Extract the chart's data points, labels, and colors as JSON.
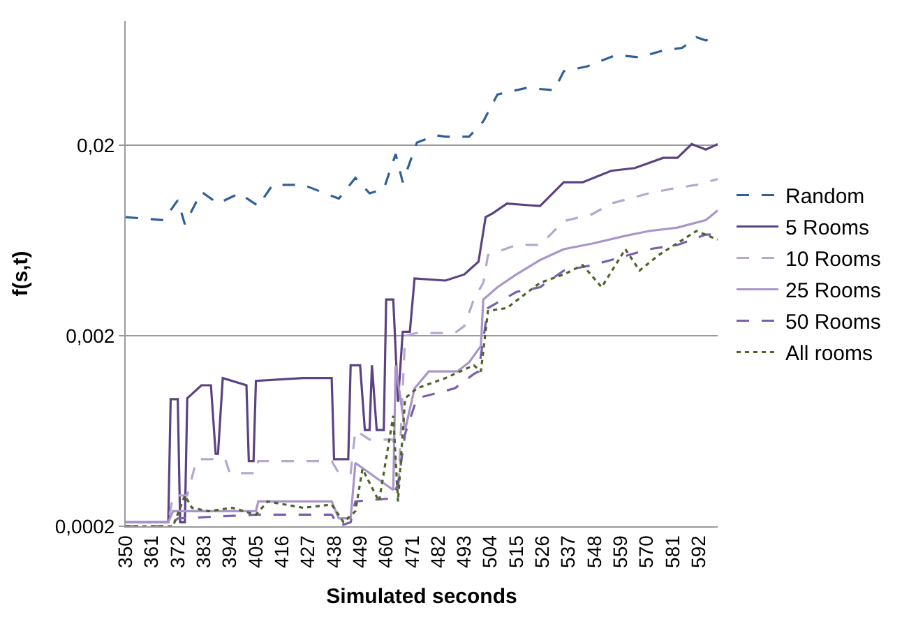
{
  "chart_data": {
    "type": "line",
    "xlabel": "Simulated seconds",
    "ylabel": "f(s,t)",
    "log": true,
    "grid": "y",
    "legend": "right",
    "marker": "none",
    "xlim": [
      350,
      600
    ],
    "xticks": [
      350,
      361,
      372,
      383,
      394,
      405,
      416,
      427,
      438,
      449,
      460,
      471,
      482,
      493,
      504,
      515,
      526,
      537,
      548,
      559,
      570,
      581,
      592
    ],
    "ylim": [
      0.0002,
      0.09
    ],
    "yticks": [
      {
        "value": 0.0002,
        "label": "0,0002"
      },
      {
        "value": 0.002,
        "label": "0,002"
      },
      {
        "value": 0.02,
        "label": "0,02"
      }
    ],
    "series": [
      {
        "name": "Random",
        "color": "#2f5f98",
        "line_style": "dashed",
        "x": [
          350,
          366,
          372,
          375,
          382,
          389,
          398,
          406,
          412,
          425,
          440,
          447,
          453,
          459,
          464,
          467,
          473,
          481,
          485,
          495,
          501,
          507,
          519,
          531,
          535,
          545,
          557,
          567,
          577,
          585,
          591,
          595,
          600
        ],
        "values": [
          0.0084,
          0.0081,
          0.0103,
          0.0077,
          0.0114,
          0.0099,
          0.0112,
          0.0096,
          0.0124,
          0.0124,
          0.0105,
          0.0135,
          0.0112,
          0.0118,
          0.018,
          0.0128,
          0.0207,
          0.0226,
          0.0222,
          0.0222,
          0.0267,
          0.037,
          0.04,
          0.039,
          0.049,
          0.052,
          0.0596,
          0.058,
          0.063,
          0.065,
          0.074,
          0.071,
          0.077
        ]
      },
      {
        "name": "5 Rooms",
        "color": "#5b4282",
        "line_style": "solid",
        "x": [
          350,
          368,
          369,
          372,
          373,
          375,
          376,
          382,
          386,
          388,
          389,
          391,
          401,
          402,
          404,
          405,
          425,
          437,
          438,
          444,
          445,
          449,
          451,
          453,
          454,
          456,
          459,
          460,
          463,
          465,
          467,
          470,
          472,
          485,
          493,
          499,
          502,
          505,
          511,
          525,
          535,
          543,
          555,
          565,
          577,
          583,
          589,
          595,
          600
        ],
        "values": [
          0.00021,
          0.00021,
          0.00093,
          0.00093,
          0.00021,
          0.00021,
          0.00094,
          0.0011,
          0.0011,
          0.00048,
          0.00048,
          0.0012,
          0.0011,
          0.00044,
          0.00044,
          0.00116,
          0.0012,
          0.0012,
          0.00045,
          0.00045,
          0.0014,
          0.0014,
          0.00064,
          0.00064,
          0.0014,
          0.00064,
          0.00064,
          0.0031,
          0.0031,
          0.0009,
          0.0021,
          0.0021,
          0.004,
          0.0039,
          0.0042,
          0.0049,
          0.0084,
          0.0088,
          0.0099,
          0.0096,
          0.0128,
          0.0128,
          0.0147,
          0.0152,
          0.0172,
          0.0172,
          0.0203,
          0.019,
          0.0203
        ]
      },
      {
        "name": "10 Rooms",
        "color": "#b6a6d0",
        "line_style": "dashed",
        "x": [
          350,
          368,
          370,
          376,
          380,
          392,
          394,
          405,
          406,
          437,
          440,
          445,
          447,
          453,
          463,
          465,
          468,
          473,
          489,
          493,
          497,
          501,
          503,
          515,
          525,
          535,
          547,
          555,
          571,
          580,
          591,
          600
        ],
        "values": [
          0.00021,
          0.00021,
          0.00029,
          0.00029,
          0.00045,
          0.00045,
          0.00038,
          0.00038,
          0.00044,
          0.00044,
          0.00038,
          0.00038,
          0.00064,
          0.00057,
          0.00057,
          0.00029,
          0.002,
          0.00207,
          0.00207,
          0.00225,
          0.0031,
          0.0038,
          0.0053,
          0.006,
          0.006,
          0.008,
          0.0087,
          0.0099,
          0.0112,
          0.0118,
          0.0124,
          0.0133
        ]
      },
      {
        "name": "25 Rooms",
        "color": "#a995c9",
        "line_style": "solid",
        "x": [
          350,
          368,
          370,
          405,
          406,
          437,
          440,
          445,
          447,
          463,
          464,
          468,
          472,
          478,
          490,
          495,
          500,
          501,
          507,
          515,
          525,
          535,
          547,
          561,
          571,
          583,
          595,
          600
        ],
        "values": [
          0.00021,
          0.00021,
          0.00024,
          0.00024,
          0.00027,
          0.00027,
          0.00022,
          0.00022,
          0.00043,
          0.00031,
          0.0014,
          0.00064,
          0.00106,
          0.0013,
          0.0013,
          0.00145,
          0.00177,
          0.0031,
          0.0036,
          0.0042,
          0.005,
          0.0057,
          0.0061,
          0.0067,
          0.0071,
          0.0074,
          0.0081,
          0.0091
        ]
      },
      {
        "name": "50 Rooms",
        "color": "#7a5fae",
        "line_style": "dashed",
        "x": [
          350,
          368,
          372,
          405,
          437,
          440,
          445,
          447,
          462,
          465,
          468,
          473,
          489,
          497,
          499,
          503,
          515,
          525,
          535,
          547,
          555,
          571,
          583,
          595,
          600
        ],
        "values": [
          0.0002,
          0.0002,
          0.00022,
          0.00023,
          0.00023,
          0.0002,
          0.00021,
          0.00027,
          0.00028,
          0.00033,
          0.00061,
          0.00094,
          0.00106,
          0.00126,
          0.0013,
          0.0028,
          0.0034,
          0.0036,
          0.0044,
          0.0047,
          0.005,
          0.0057,
          0.006,
          0.0068,
          0.0068
        ]
      },
      {
        "name": "All rooms",
        "color": "#4f6228",
        "line_style": "dotted",
        "x": [
          350,
          370,
          375,
          378,
          385,
          395,
          405,
          410,
          425,
          437,
          442,
          447,
          450,
          457,
          463,
          465,
          468,
          473,
          485,
          497,
          500,
          503,
          511,
          525,
          535,
          543,
          551,
          561,
          567,
          575,
          591,
          600
        ],
        "values": [
          0.0002,
          0.0002,
          0.00029,
          0.00025,
          0.00024,
          0.00025,
          0.00023,
          0.00027,
          0.00025,
          0.00026,
          0.00021,
          0.00024,
          0.0004,
          0.00027,
          0.00076,
          0.00027,
          0.00094,
          0.00106,
          0.0012,
          0.0014,
          0.0013,
          0.0027,
          0.0028,
          0.0038,
          0.0042,
          0.0047,
          0.0036,
          0.0057,
          0.0044,
          0.0053,
          0.0071,
          0.0064
        ]
      }
    ]
  }
}
